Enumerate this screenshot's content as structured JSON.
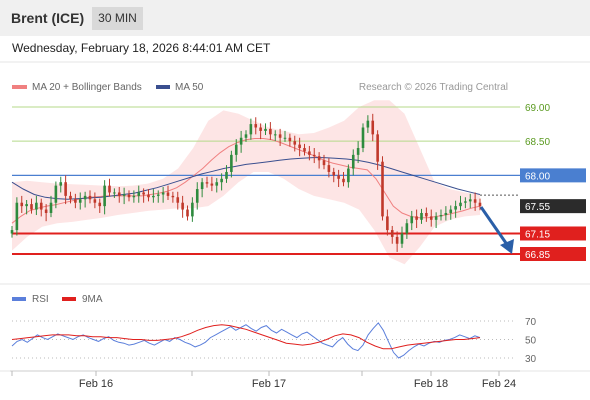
{
  "header": {
    "instrument": "Brent (ICE)",
    "timeframe": "30 MIN",
    "datetime": "Wednesday, February 18, 2026 8:44:01 AM CET"
  },
  "legend": {
    "ma20_label": "MA 20 + Bollinger Bands",
    "ma50_label": "MA 50",
    "credit": "Research © 2026 Trading Central",
    "rsi_label": "RSI",
    "rsi_ma_label": "9MA"
  },
  "colors": {
    "ma20": "#f08080",
    "ma50": "#3a4f8f",
    "bollinger_fill": "#fde2e2",
    "resistance_line": "#b5d98a",
    "resistance_text": "#5a9a20",
    "pivot": "#4a7fd0",
    "support": "#e0201e",
    "current_price_bg": "#2b2b2b",
    "up_candle": "#2e8b3e",
    "down_candle": "#c0392b",
    "arrow": "#2a5fa8",
    "rsi_line": "#5b7fdb",
    "rsi_ma": "#e0201e"
  },
  "chart_data": [
    {
      "type": "line",
      "title": "Brent (ICE) 30 MIN",
      "x_ticks": [
        "Feb 16",
        "Feb 17",
        "Feb 18",
        "Feb 24"
      ],
      "ylim": [
        66.7,
        69.2
      ],
      "levels": [
        {
          "label": "69.00",
          "value": 69.0,
          "role": "resistance"
        },
        {
          "label": "68.50",
          "value": 68.5,
          "role": "resistance"
        },
        {
          "label": "68.00",
          "value": 68.0,
          "role": "pivot"
        },
        {
          "label": "67.55",
          "value": 67.55,
          "role": "last"
        },
        {
          "label": "67.15",
          "value": 67.15,
          "role": "support"
        },
        {
          "label": "66.85",
          "value": 66.85,
          "role": "support"
        }
      ],
      "series": [
        {
          "name": "Brent (ICE)",
          "close": [
            67.2,
            67.6,
            67.55,
            67.58,
            67.5,
            67.6,
            67.5,
            67.45,
            67.6,
            67.85,
            67.9,
            67.7,
            67.65,
            67.6,
            67.65,
            67.7,
            67.65,
            67.6,
            67.55,
            67.85,
            67.75,
            67.75,
            67.7,
            67.72,
            67.68,
            67.7,
            67.75,
            67.72,
            67.68,
            67.7,
            67.72,
            67.75,
            67.7,
            67.68,
            67.6,
            67.5,
            67.4,
            67.6,
            67.8,
            67.9,
            67.88,
            67.85,
            67.9,
            67.95,
            68.05,
            68.3,
            68.45,
            68.55,
            68.6,
            68.75,
            68.7,
            68.65,
            68.68,
            68.6,
            68.6,
            68.55,
            68.55,
            68.5,
            68.45,
            68.4,
            68.35,
            68.3,
            68.28,
            68.22,
            68.15,
            68.05,
            68.0,
            67.95,
            67.9,
            68.1,
            68.3,
            68.4,
            68.7,
            68.8,
            68.6,
            68.2,
            67.4,
            67.2,
            67.1,
            67.0,
            67.15,
            67.3,
            67.4,
            67.35,
            67.45,
            67.4,
            67.35,
            67.4,
            67.42,
            67.45,
            67.5,
            67.55,
            67.6,
            67.62,
            67.65,
            67.6,
            67.55
          ],
          "x_start": 12,
          "x_end": 480
        },
        {
          "name": "MA 20",
          "values": [
            67.3,
            67.4,
            67.48,
            67.52,
            67.55,
            67.57,
            67.6,
            67.63,
            67.66,
            67.68,
            67.69,
            67.7,
            67.7,
            67.7,
            67.7,
            67.7,
            67.72,
            67.74,
            67.77,
            67.82,
            67.9,
            68.0,
            68.1,
            68.22,
            68.33,
            68.42,
            68.48,
            68.52,
            68.54,
            68.54,
            68.52,
            68.48,
            68.43,
            68.38,
            68.33,
            68.28,
            68.22,
            68.18,
            68.15,
            68.12,
            68.1,
            68.08,
            67.95,
            67.75,
            67.55,
            67.45,
            67.4,
            67.38,
            67.38,
            67.4,
            67.42,
            67.45,
            67.48,
            67.52,
            67.55
          ],
          "x_start": 12,
          "x_end": 480
        },
        {
          "name": "MA 50",
          "values": [
            67.9,
            67.8,
            67.72,
            67.68,
            67.66,
            67.65,
            67.66,
            67.67,
            67.68,
            67.7,
            67.72,
            67.74,
            67.78,
            67.82,
            67.87,
            67.92,
            67.97,
            68.02,
            68.06,
            68.1,
            68.13,
            68.16,
            68.18,
            68.2,
            68.22,
            68.24,
            68.25,
            68.26,
            68.26,
            68.25,
            68.24,
            68.22,
            68.19,
            68.15,
            68.1,
            68.05,
            68.0,
            67.95,
            67.9,
            67.85,
            67.8,
            67.76,
            67.72
          ],
          "x_start": 12,
          "x_end": 480
        },
        {
          "name": "Bollinger upper",
          "values": [
            67.9,
            67.92,
            67.9,
            67.88,
            67.87,
            67.86,
            67.85,
            67.84,
            67.85,
            67.88,
            67.95,
            68.1,
            68.4,
            68.8,
            68.95,
            68.9,
            68.8,
            68.7,
            68.65,
            68.6,
            68.62,
            68.7,
            68.8,
            69.0,
            69.1,
            69.1,
            68.9,
            68.4,
            67.9,
            67.8,
            67.75,
            67.72
          ],
          "x_start": 12,
          "x_end": 480
        },
        {
          "name": "Bollinger lower",
          "values": [
            66.9,
            67.1,
            67.25,
            67.3,
            67.32,
            67.35,
            67.38,
            67.42,
            67.45,
            67.48,
            67.5,
            67.52,
            67.52,
            67.55,
            67.7,
            67.9,
            68.05,
            68.05,
            67.95,
            67.8,
            67.7,
            67.65,
            67.6,
            67.5,
            67.2,
            66.8,
            66.7,
            66.95,
            67.25,
            67.35,
            67.4,
            67.42
          ],
          "x_start": 12,
          "x_end": 480
        }
      ]
    },
    {
      "type": "line",
      "title": "RSI",
      "ylim": [
        20,
        80
      ],
      "y_ticks": [
        70,
        50,
        30
      ],
      "series": [
        {
          "name": "RSI",
          "values": [
            43,
            48,
            50,
            47,
            51,
            55,
            52,
            50,
            53,
            56,
            54,
            52,
            50,
            53,
            55,
            52,
            50,
            48,
            51,
            53,
            49,
            47,
            46,
            44,
            45,
            47,
            49,
            46,
            44,
            47,
            50,
            48,
            52,
            50,
            47,
            45,
            42,
            44,
            47,
            52,
            55,
            58,
            61,
            64,
            60,
            63,
            66,
            62,
            59,
            63,
            65,
            60,
            57,
            61,
            58,
            55,
            52,
            56,
            58,
            54,
            50,
            46,
            44,
            42,
            48,
            52,
            45,
            40,
            38,
            44,
            55,
            62,
            68,
            60,
            48,
            36,
            30,
            33,
            38,
            42,
            45,
            43,
            46,
            48,
            47,
            49,
            50,
            52,
            55,
            53,
            51,
            54,
            52
          ],
          "x_start": 12,
          "x_end": 480
        },
        {
          "name": "9MA",
          "values": [
            50,
            51,
            52,
            53,
            54,
            55,
            55,
            55,
            54,
            54,
            53,
            53,
            52,
            52,
            51,
            50,
            50,
            49,
            49,
            50,
            51,
            53,
            56,
            60,
            63,
            65,
            66,
            65,
            63,
            61,
            58,
            55,
            52,
            49,
            46,
            45,
            44,
            45,
            47,
            50,
            54,
            56,
            55,
            52,
            47,
            43,
            40,
            40,
            42,
            44,
            45,
            46,
            47,
            48,
            49,
            50,
            50,
            51,
            52
          ],
          "x_start": 12,
          "x_end": 480
        }
      ]
    }
  ]
}
